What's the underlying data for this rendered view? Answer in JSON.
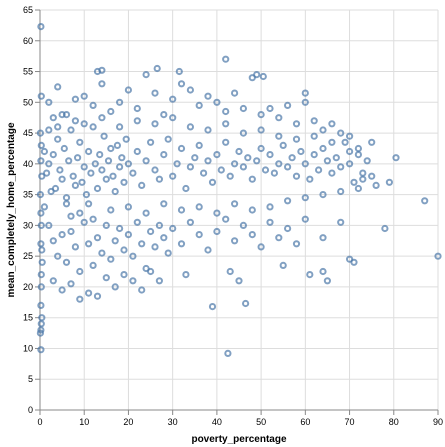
{
  "chart_data": {
    "type": "scatter",
    "title": "",
    "xlabel": "poverty_percentage",
    "ylabel": "mean_completely_home_percentage",
    "xlim": [
      0,
      90
    ],
    "ylim": [
      0,
      65
    ],
    "x_ticks": [
      "0",
      "10",
      "20",
      "30",
      "40",
      "50",
      "60",
      "70",
      "80",
      "90"
    ],
    "y_ticks": [
      "0",
      "5",
      "10",
      "15",
      "20",
      "25",
      "30",
      "35",
      "40",
      "45",
      "50",
      "55",
      "60",
      "65"
    ],
    "grid": true,
    "marker": "open-circle",
    "point_color": "#4c78a8",
    "series": [
      {
        "values": [
          [
            0.2,
            62.3
          ],
          [
            0.3,
            51.0
          ],
          [
            0.1,
            45.0
          ],
          [
            0.2,
            40.5
          ],
          [
            0.4,
            38.0
          ],
          [
            0.1,
            35.0
          ],
          [
            0.3,
            30.0
          ],
          [
            0.2,
            27.0
          ],
          [
            0.5,
            24.0
          ],
          [
            0.3,
            20.0
          ],
          [
            0.2,
            17.0
          ],
          [
            0.4,
            15.0
          ],
          [
            0.3,
            14.0
          ],
          [
            0.2,
            13.0
          ],
          [
            0.1,
            12.5
          ],
          [
            0.2,
            9.8
          ],
          [
            0.3,
            22.0
          ],
          [
            0.4,
            26.0
          ],
          [
            0.2,
            32.0
          ],
          [
            0.3,
            43.0
          ],
          [
            1.0,
            42.0
          ],
          [
            1.5,
            38.5
          ],
          [
            2.0,
            40.0
          ],
          [
            2.5,
            35.5
          ],
          [
            3.0,
            41.5
          ],
          [
            3.5,
            36.0
          ],
          [
            4.0,
            44.0
          ],
          [
            4.5,
            39.0
          ],
          [
            5.0,
            37.5
          ],
          [
            5.5,
            42.5
          ],
          [
            6.0,
            34.5
          ],
          [
            6.5,
            40.5
          ],
          [
            7.0,
            45.5
          ],
          [
            7.5,
            38.0
          ],
          [
            8.0,
            36.5
          ],
          [
            8.5,
            41.0
          ],
          [
            9.0,
            43.5
          ],
          [
            9.5,
            37.0
          ],
          [
            10.0,
            39.5
          ],
          [
            10.5,
            35.0
          ],
          [
            11.0,
            42.0
          ],
          [
            11.5,
            38.5
          ],
          [
            12.0,
            46.0
          ],
          [
            12.5,
            40.0
          ],
          [
            13.0,
            36.0
          ],
          [
            13.5,
            41.5
          ],
          [
            14.0,
            39.0
          ],
          [
            14.5,
            44.5
          ],
          [
            15.0,
            37.5
          ],
          [
            15.5,
            40.5
          ],
          [
            16.0,
            42.5
          ],
          [
            16.5,
            38.0
          ],
          [
            17.0,
            35.5
          ],
          [
            17.5,
            43.0
          ],
          [
            18.0,
            39.5
          ],
          [
            18.5,
            41.0
          ],
          [
            19.0,
            37.0
          ],
          [
            19.5,
            44.0
          ],
          [
            20.0,
            40.0
          ],
          [
            21.0,
            38.5
          ],
          [
            22.0,
            42.0
          ],
          [
            23.0,
            36.5
          ],
          [
            24.0,
            40.5
          ],
          [
            25.0,
            43.5
          ],
          [
            26.0,
            39.0
          ],
          [
            27.0,
            37.5
          ],
          [
            28.0,
            41.5
          ],
          [
            29.0,
            44.0
          ],
          [
            30.0,
            38.0
          ],
          [
            31.0,
            40.0
          ],
          [
            32.0,
            42.5
          ],
          [
            33.0,
            36.0
          ],
          [
            34.0,
            39.5
          ],
          [
            35.0,
            41.0
          ],
          [
            36.0,
            43.0
          ],
          [
            37.0,
            38.5
          ],
          [
            38.0,
            40.5
          ],
          [
            39.0,
            37.0
          ],
          [
            40.0,
            41.5
          ],
          [
            41.0,
            39.0
          ],
          [
            42.0,
            43.5
          ],
          [
            43.0,
            38.0
          ],
          [
            44.0,
            40.0
          ],
          [
            45.0,
            42.0
          ],
          [
            46.0,
            39.5
          ],
          [
            47.0,
            41.0
          ],
          [
            48.0,
            37.5
          ],
          [
            49.0,
            40.5
          ],
          [
            50.0,
            42.5
          ],
          [
            51.0,
            39.0
          ],
          [
            52.0,
            41.5
          ],
          [
            53.0,
            38.5
          ],
          [
            54.0,
            40.0
          ],
          [
            55.0,
            43.0
          ],
          [
            56.0,
            39.5
          ],
          [
            57.0,
            41.0
          ],
          [
            58.0,
            38.0
          ],
          [
            59.0,
            42.0
          ],
          [
            60.0,
            40.0
          ],
          [
            61.0,
            37.5
          ],
          [
            62.0,
            41.5
          ],
          [
            63.0,
            39.0
          ],
          [
            64.0,
            42.5
          ],
          [
            65.0,
            40.5
          ],
          [
            66.0,
            38.5
          ],
          [
            67.0,
            41.0
          ],
          [
            68.0,
            39.5
          ],
          [
            69.0,
            43.5
          ],
          [
            70.0,
            40.0
          ],
          [
            71.0,
            37.0
          ],
          [
            72.0,
            41.5
          ],
          [
            73.0,
            38.5
          ],
          [
            74.0,
            40.5
          ],
          [
            2.0,
            50.0
          ],
          [
            4.0,
            52.5
          ],
          [
            6.0,
            48.0
          ],
          [
            8.0,
            50.5
          ],
          [
            10.0,
            51.0
          ],
          [
            12.0,
            49.5
          ],
          [
            14.0,
            53.0
          ],
          [
            16.0,
            48.5
          ],
          [
            18.0,
            50.0
          ],
          [
            20.0,
            52.0
          ],
          [
            22.0,
            49.0
          ],
          [
            24.0,
            54.5
          ],
          [
            26.0,
            51.5
          ],
          [
            28.0,
            48.0
          ],
          [
            30.0,
            50.5
          ],
          [
            32.0,
            53.0
          ],
          [
            34.0,
            52.0
          ],
          [
            36.0,
            49.5
          ],
          [
            38.0,
            51.0
          ],
          [
            40.0,
            50.0
          ],
          [
            42.0,
            48.5
          ],
          [
            44.0,
            51.5
          ],
          [
            46.0,
            49.0
          ],
          [
            48.0,
            54.0
          ],
          [
            50.0,
            48.0
          ],
          [
            52.0,
            49.0
          ],
          [
            54.0,
            47.5
          ],
          [
            56.0,
            49.5
          ],
          [
            58.0,
            46.5
          ],
          [
            60.0,
            50.0
          ],
          [
            62.0,
            47.0
          ],
          [
            64.0,
            45.5
          ],
          [
            66.0,
            46.5
          ],
          [
            68.0,
            45.0
          ],
          [
            70.0,
            44.5
          ],
          [
            72.0,
            42.5
          ],
          [
            13.0,
            55.0
          ],
          [
            14.0,
            55.2
          ],
          [
            26.5,
            55.5
          ],
          [
            31.5,
            55.0
          ],
          [
            42.0,
            57.0
          ],
          [
            49.0,
            54.5
          ],
          [
            50.5,
            54.2
          ],
          [
            60.0,
            51.5
          ],
          [
            75.0,
            43.5
          ],
          [
            80.5,
            41.0
          ],
          [
            87.0,
            34.0
          ],
          [
            90.0,
            25.0
          ],
          [
            2.0,
            30.0
          ],
          [
            3.0,
            27.5
          ],
          [
            4.0,
            25.0
          ],
          [
            5.0,
            28.5
          ],
          [
            6.0,
            24.0
          ],
          [
            7.0,
            29.0
          ],
          [
            8.0,
            26.5
          ],
          [
            9.0,
            22.5
          ],
          [
            10.0,
            30.5
          ],
          [
            11.0,
            27.0
          ],
          [
            12.0,
            23.5
          ],
          [
            13.0,
            28.0
          ],
          [
            14.0,
            25.5
          ],
          [
            15.0,
            30.0
          ],
          [
            16.0,
            24.5
          ],
          [
            17.0,
            27.5
          ],
          [
            18.0,
            29.5
          ],
          [
            19.0,
            26.0
          ],
          [
            20.0,
            28.5
          ],
          [
            21.0,
            25.0
          ],
          [
            22.0,
            30.5
          ],
          [
            23.0,
            27.0
          ],
          [
            24.0,
            23.0
          ],
          [
            25.0,
            29.0
          ],
          [
            26.0,
            26.5
          ],
          [
            27.0,
            30.0
          ],
          [
            28.0,
            28.0
          ],
          [
            29.0,
            25.5
          ],
          [
            30.0,
            29.5
          ],
          [
            32.0,
            27.0
          ],
          [
            34.0,
            30.5
          ],
          [
            36.0,
            28.5
          ],
          [
            38.0,
            26.0
          ],
          [
            40.0,
            29.0
          ],
          [
            42.0,
            31.0
          ],
          [
            44.0,
            27.5
          ],
          [
            46.0,
            30.0
          ],
          [
            48.0,
            28.5
          ],
          [
            50.0,
            26.5
          ],
          [
            52.0,
            30.5
          ],
          [
            54.0,
            28.0
          ],
          [
            56.0,
            29.5
          ],
          [
            58.0,
            27.0
          ],
          [
            60.0,
            31.0
          ],
          [
            64.0,
            28.0
          ],
          [
            68.0,
            30.5
          ],
          [
            70.0,
            24.5
          ],
          [
            71.0,
            24.0
          ],
          [
            3.0,
            21.0
          ],
          [
            5.0,
            19.5
          ],
          [
            7.0,
            20.5
          ],
          [
            9.0,
            18.0
          ],
          [
            11.0,
            19.0
          ],
          [
            13.0,
            18.5
          ],
          [
            15.0,
            21.5
          ],
          [
            17.0,
            20.0
          ],
          [
            19.0,
            22.0
          ],
          [
            21.0,
            21.0
          ],
          [
            23.0,
            19.5
          ],
          [
            25.0,
            22.5
          ],
          [
            27.0,
            21.0
          ],
          [
            33.0,
            22.0
          ],
          [
            43.0,
            22.5
          ],
          [
            45.0,
            21.0
          ],
          [
            46.5,
            17.3
          ],
          [
            39.0,
            16.8
          ],
          [
            42.5,
            9.2
          ],
          [
            55.0,
            23.5
          ],
          [
            61.0,
            22.0
          ],
          [
            64.0,
            22.5
          ],
          [
            65.0,
            21.0
          ],
          [
            1.0,
            33.0
          ],
          [
            2.0,
            45.5
          ],
          [
            3.0,
            47.5
          ],
          [
            4.0,
            46.0
          ],
          [
            5.0,
            48.0
          ],
          [
            6.0,
            33.5
          ],
          [
            7.0,
            31.5
          ],
          [
            8.0,
            47.0
          ],
          [
            9.0,
            32.0
          ],
          [
            10.0,
            46.5
          ],
          [
            11.0,
            33.5
          ],
          [
            12.0,
            31.0
          ],
          [
            14.0,
            47.5
          ],
          [
            16.0,
            32.5
          ],
          [
            18.0,
            46.0
          ],
          [
            20.0,
            33.0
          ],
          [
            22.0,
            47.0
          ],
          [
            24.0,
            32.0
          ],
          [
            26.0,
            46.5
          ],
          [
            28.0,
            33.5
          ],
          [
            30.0,
            47.5
          ],
          [
            32.0,
            32.5
          ],
          [
            34.0,
            46.0
          ],
          [
            36.0,
            33.0
          ],
          [
            38.0,
            45.5
          ],
          [
            40.0,
            32.0
          ],
          [
            42.0,
            46.5
          ],
          [
            44.0,
            33.5
          ],
          [
            46.0,
            45.0
          ],
          [
            48.0,
            32.5
          ],
          [
            50.0,
            45.5
          ],
          [
            52.0,
            33.0
          ],
          [
            54.0,
            44.5
          ],
          [
            56.0,
            34.0
          ],
          [
            58.0,
            44.0
          ],
          [
            60.0,
            34.5
          ],
          [
            62.0,
            44.5
          ],
          [
            64.0,
            35.0
          ],
          [
            66.0,
            43.5
          ],
          [
            68.0,
            35.5
          ],
          [
            70.0,
            42.0
          ],
          [
            72.0,
            36.0
          ],
          [
            73.0,
            37.5
          ],
          [
            75.0,
            38.0
          ],
          [
            76.0,
            36.5
          ],
          [
            78.0,
            29.5
          ],
          [
            79.0,
            37.0
          ]
        ]
      }
    ]
  }
}
